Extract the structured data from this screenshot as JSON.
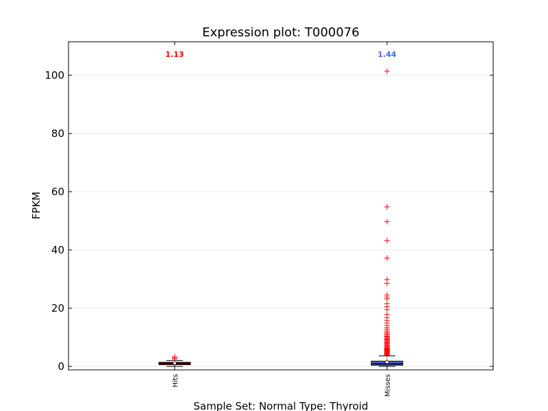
{
  "chart_data": {
    "type": "box",
    "title": "Expression plot: T000076",
    "xlabel": "Sample Set: Normal Type: Thyroid",
    "ylabel": "FPKM",
    "ylim": [
      -1.2,
      111.5
    ],
    "yticks": [
      0,
      20,
      40,
      60,
      80,
      100
    ],
    "grid": true,
    "categories": [
      "Hits",
      "Misses"
    ],
    "series": [
      {
        "category": "Hits",
        "color": "#8b0000",
        "label_color": "#ff0000",
        "mean_label": "1.13",
        "mean": 1.13,
        "q1": 0.6,
        "median": 1.0,
        "q3": 1.4,
        "whisker_low": 0.0,
        "whisker_high": 2.0,
        "outliers": [
          2.5,
          2.9,
          3.3
        ]
      },
      {
        "category": "Misses",
        "color": "#4a63c8",
        "label_color": "#4169e1",
        "mean_label": "1.44",
        "mean": 1.44,
        "q1": 0.4,
        "median": 0.9,
        "q3": 1.8,
        "whisker_low": 0.0,
        "whisker_high": 3.6,
        "outliers": [
          3.9,
          4.1,
          4.3,
          4.5,
          4.7,
          4.9,
          5.1,
          5.3,
          5.5,
          5.7,
          5.9,
          6.1,
          6.3,
          6.6,
          6.9,
          7.2,
          7.5,
          7.8,
          8.1,
          8.4,
          8.7,
          9.0,
          9.3,
          9.6,
          9.9,
          10.2,
          10.5,
          10.9,
          11.3,
          11.7,
          12.2,
          12.8,
          13.4,
          14.1,
          14.9,
          15.8,
          16.7,
          17.8,
          19.5,
          20.5,
          21.5,
          23.2,
          23.8,
          24.5,
          28.5,
          29.8,
          37.2,
          43.2,
          49.7,
          54.8,
          101.4
        ]
      }
    ]
  }
}
